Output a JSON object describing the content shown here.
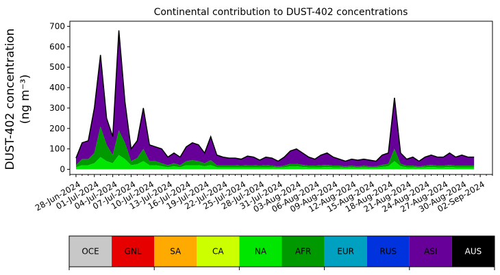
{
  "chart_data": {
    "type": "area",
    "stacked": true,
    "title": "Continental contribution to DUST-402 concentrations",
    "ylabel_line1": "DUST-402 concentration",
    "ylabel_line2": "(ng m⁻³)",
    "ylim": [
      -25,
      725
    ],
    "yticks": [
      0,
      100,
      200,
      300,
      400,
      500,
      600,
      700
    ],
    "x_start": "2024-06-28",
    "x_end": "2024-09-02",
    "xlim": [
      "2024-06-27",
      "2024-09-04"
    ],
    "xtick_labels": [
      "28-Jun-2024",
      "01-Jul-2024",
      "04-Jul-2024",
      "07-Jul-2024",
      "10-Jul-2024",
      "13-Jul-2024",
      "16-Jul-2024",
      "19-Jul-2024",
      "22-Jul-2024",
      "25-Jul-2024",
      "28-Jul-2024",
      "31-Jul-2024",
      "03-Aug-2024",
      "06-Aug-2024",
      "09-Aug-2024",
      "12-Aug-2024",
      "15-Aug-2024",
      "18-Aug-2024",
      "21-Aug-2024",
      "24-Aug-2024",
      "27-Aug-2024",
      "30-Aug-2024",
      "02-Sep-2024"
    ],
    "total": {
      "x": [
        "2024-06-28",
        "2024-06-29",
        "2024-06-30",
        "2024-07-01",
        "2024-07-02",
        "2024-07-03",
        "2024-07-04",
        "2024-07-05",
        "2024-07-06",
        "2024-07-07",
        "2024-07-08",
        "2024-07-09",
        "2024-07-10",
        "2024-07-11",
        "2024-07-12",
        "2024-07-13",
        "2024-07-14",
        "2024-07-15",
        "2024-07-16",
        "2024-07-17",
        "2024-07-18",
        "2024-07-19",
        "2024-07-20",
        "2024-07-21",
        "2024-07-22",
        "2024-07-23",
        "2024-07-24",
        "2024-07-25",
        "2024-07-26",
        "2024-07-27",
        "2024-07-28",
        "2024-07-29",
        "2024-07-30",
        "2024-07-31",
        "2024-08-01",
        "2024-08-02",
        "2024-08-03",
        "2024-08-04",
        "2024-08-05",
        "2024-08-06",
        "2024-08-07",
        "2024-08-08",
        "2024-08-09",
        "2024-08-10",
        "2024-08-11",
        "2024-08-12",
        "2024-08-13",
        "2024-08-14",
        "2024-08-15",
        "2024-08-16",
        "2024-08-17",
        "2024-08-18",
        "2024-08-19",
        "2024-08-20",
        "2024-08-21",
        "2024-08-22",
        "2024-08-23",
        "2024-08-24",
        "2024-08-25",
        "2024-08-26",
        "2024-08-27",
        "2024-08-28",
        "2024-08-29",
        "2024-08-30",
        "2024-08-31",
        "2024-09-01"
      ],
      "y": [
        55,
        130,
        140,
        300,
        560,
        250,
        160,
        680,
        330,
        100,
        140,
        300,
        120,
        110,
        100,
        60,
        80,
        60,
        110,
        130,
        120,
        80,
        160,
        70,
        60,
        55,
        55,
        50,
        65,
        60,
        45,
        60,
        55,
        40,
        60,
        90,
        100,
        80,
        60,
        50,
        70,
        80,
        60,
        50,
        40,
        50,
        45,
        50,
        45,
        40,
        70,
        80,
        350,
        80,
        50,
        60,
        40,
        60,
        70,
        60,
        60,
        80,
        60,
        70,
        60,
        60
      ]
    },
    "series": [
      {
        "name": "OCE",
        "color": "#c8c8c8"
      },
      {
        "name": "GNL",
        "color": "#e60000"
      },
      {
        "name": "SA",
        "color": "#ffaa00"
      },
      {
        "name": "CA",
        "color": "#ccff00"
      },
      {
        "name": "NA",
        "color": "#00e600",
        "values": [
          10,
          20,
          20,
          30,
          60,
          40,
          30,
          70,
          50,
          20,
          25,
          40,
          20,
          20,
          15,
          10,
          15,
          10,
          20,
          20,
          20,
          15,
          20,
          10,
          10,
          10,
          10,
          10,
          10,
          10,
          10,
          10,
          10,
          8,
          10,
          15,
          15,
          12,
          10,
          10,
          10,
          12,
          10,
          10,
          8,
          10,
          8,
          10,
          8,
          8,
          12,
          15,
          40,
          15,
          10,
          10,
          8,
          10,
          12,
          10,
          10,
          12,
          10,
          10,
          10,
          10
        ]
      },
      {
        "name": "AFR",
        "color": "#009900",
        "values": [
          10,
          30,
          30,
          50,
          150,
          80,
          40,
          120,
          80,
          20,
          30,
          60,
          20,
          20,
          15,
          10,
          15,
          10,
          20,
          25,
          20,
          15,
          25,
          10,
          10,
          10,
          10,
          8,
          10,
          10,
          8,
          10,
          8,
          6,
          8,
          12,
          12,
          10,
          8,
          8,
          10,
          10,
          8,
          8,
          6,
          8,
          6,
          8,
          6,
          6,
          10,
          12,
          60,
          12,
          8,
          8,
          6,
          8,
          10,
          8,
          8,
          10,
          8,
          8,
          8,
          8
        ]
      },
      {
        "name": "EUR",
        "color": "#00a0c0"
      },
      {
        "name": "RUS",
        "color": "#0033dd"
      },
      {
        "name": "ASI",
        "color": "#660099"
      },
      {
        "name": "AUS",
        "color": "#000000"
      }
    ]
  }
}
